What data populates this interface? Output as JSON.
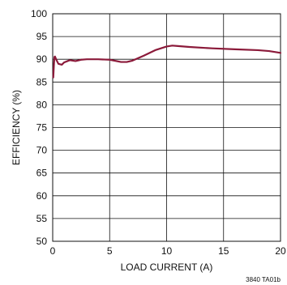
{
  "chart_data": {
    "type": "line",
    "title": "",
    "xlabel": "LOAD CURRENT (A)",
    "ylabel": "EFFICIENCY (%)",
    "xlim": [
      0,
      20
    ],
    "ylim": [
      50,
      100
    ],
    "xticks": [
      "0",
      "5",
      "10",
      "15",
      "20"
    ],
    "yticks": [
      "50",
      "55",
      "60",
      "65",
      "70",
      "75",
      "80",
      "85",
      "90",
      "95",
      "100"
    ],
    "grid": true,
    "legend": "none",
    "series": [
      {
        "color": "#8b1a3a",
        "x": [
          0.05,
          0.1,
          0.15,
          0.2,
          0.3,
          0.5,
          0.8,
          1.0,
          1.5,
          2.0,
          2.5,
          3.0,
          4.0,
          5.0,
          6.0,
          6.5,
          7.0,
          8.0,
          9.0,
          10.0,
          10.5,
          11.0,
          12.0,
          14.0,
          16.0,
          18.0,
          19.0,
          20.0
        ],
        "y": [
          86.0,
          88.5,
          90.5,
          90.6,
          90.0,
          89.0,
          88.8,
          89.3,
          89.8,
          89.6,
          89.9,
          90.0,
          90.0,
          89.9,
          89.4,
          89.4,
          89.7,
          90.8,
          92.0,
          92.8,
          93.0,
          92.9,
          92.7,
          92.4,
          92.2,
          92.0,
          91.8,
          91.4
        ]
      }
    ]
  },
  "figure_code": "3840 TA01b"
}
